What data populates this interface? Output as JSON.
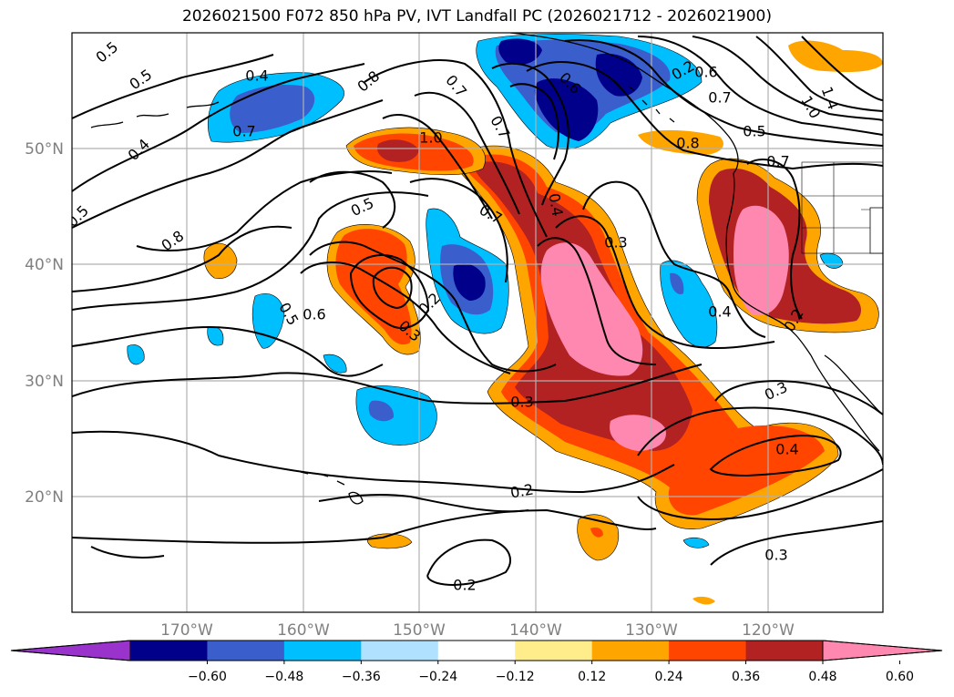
{
  "title": "2026021500 F072 850 hPa PV, IVT Landfall PC (2026021712 - 2026021900)",
  "lat_labels": [
    "50°N",
    "40°N",
    "30°N",
    "20°N"
  ],
  "lon_labels": [
    "170°W",
    "160°W",
    "150°W",
    "140°W",
    "130°W",
    "120°W"
  ],
  "colorbar": {
    "labels": [
      "−0.60",
      "−0.48",
      "−0.36",
      "−0.24",
      "−0.12",
      "0.12",
      "0.24",
      "0.36",
      "0.48",
      "0.60"
    ],
    "colors": [
      "#9933cc",
      "#00008b",
      "#3a5fcd",
      "#00bfff",
      "#b0e2ff",
      "#ffffff",
      "#ffec8b",
      "#ffa500",
      "#ff4500",
      "#b22222",
      "#ff88b0"
    ]
  },
  "colors": {
    "grid": "#b0b0b0",
    "contour": "#000000",
    "coast": "#000000"
  },
  "contour_labels": [
    "0.5",
    "0.5",
    "0.4",
    "0.4",
    "0.7",
    "0.8",
    "0.5",
    "0.8",
    "0.7",
    "0.7",
    "0.6",
    "0.6",
    "0.7",
    "0.7",
    "1.0",
    "1.0",
    "1.4",
    "0.5",
    "0.4",
    "0.3",
    "0.7",
    "0.5",
    "0.2",
    "0.3",
    "0.6",
    "0.5",
    "0.4",
    "0.2",
    "0.3",
    "0.3",
    "0.4",
    "0.2",
    "0.2",
    "0.3",
    "0.2",
    "0.8"
  ]
}
